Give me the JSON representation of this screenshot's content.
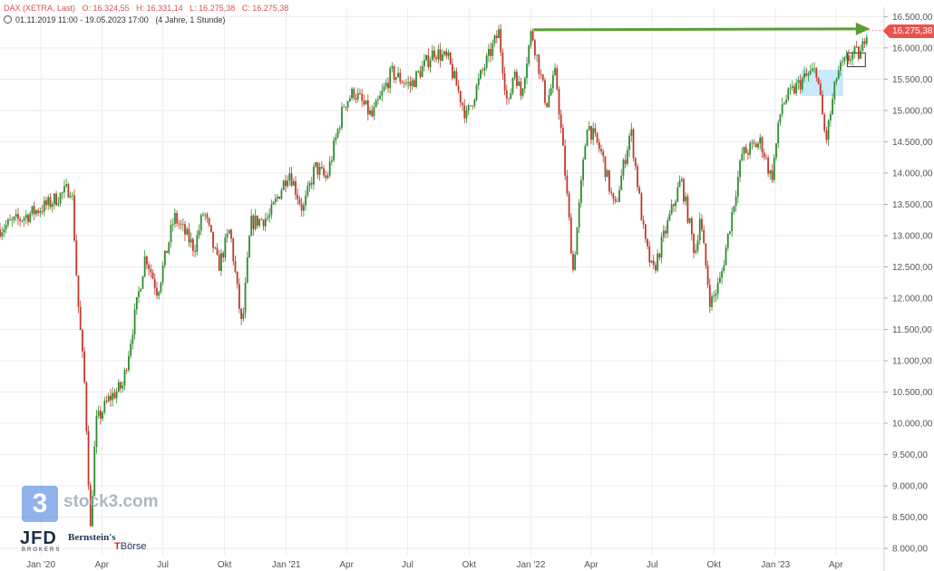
{
  "header": {
    "instrument": "DAX (XETRA, Last)",
    "open": "O: 16.324,55",
    "high": "H: 16.331,14",
    "low": "L: 16.275,38",
    "close": "C: 16.275,38",
    "range": "01.11.2019 11:00 - 19.05.2023 17:00",
    "period": "(4 Jahre, 1 Stunde)"
  },
  "last_price_label": "16.275,38",
  "watermark": {
    "icon": "3",
    "text": "stock3.com"
  },
  "logos": {
    "jfd": "JFD",
    "jfd_sub": "BROKERS",
    "bernstein": "Bernstein's",
    "boerse_mark": "T",
    "boerse": "Börse"
  },
  "colors": {
    "up": "#2e8b2e",
    "down": "#c0392b",
    "arrow": "#5a9e32",
    "zone": "#bfe6fa",
    "grid": "#ececec"
  },
  "chart_data": {
    "type": "candlestick",
    "title": "DAX (XETRA, Last)",
    "ylim": [
      7900,
      16650
    ],
    "y_ticks": [
      8000,
      8500,
      9000,
      9500,
      10000,
      10500,
      11000,
      11500,
      12000,
      12500,
      13000,
      13500,
      14000,
      14500,
      15000,
      15500,
      16000,
      16500
    ],
    "y_tick_labels": [
      "8.000,00",
      "8.500,00",
      "9.000,00",
      "9.500,00",
      "10.000,00",
      "10.500,00",
      "11.000,00",
      "11.500,00",
      "12.000,00",
      "12.500,00",
      "13.000,00",
      "13.500,00",
      "14.000,00",
      "14.500,00",
      "15.000,00",
      "15.500,00",
      "16.000,00",
      "16.500,00"
    ],
    "x_ticks": [
      "2020-01",
      "2020-04",
      "2020-07",
      "2020-10",
      "2021-01",
      "2021-04",
      "2021-07",
      "2021-10",
      "2022-01",
      "2022-04",
      "2022-07",
      "2022-10",
      "2023-01",
      "2023-04"
    ],
    "x_tick_labels": [
      "Jan '20",
      "Apr",
      "Jul",
      "Okt",
      "Jan '21",
      "Apr",
      "Jul",
      "Okt",
      "Jan '22",
      "Apr",
      "Jul",
      "Okt",
      "Jan '23",
      "Apr"
    ],
    "xlim": [
      "2019-11-01",
      "2023-06-12"
    ],
    "grid": true,
    "path": [
      {
        "x": "2019-11-01",
        "y": 13100
      },
      {
        "x": "2019-12-01",
        "y": 13250
      },
      {
        "x": "2020-01-15",
        "y": 13500
      },
      {
        "x": "2020-02-19",
        "y": 13780
      },
      {
        "x": "2020-02-28",
        "y": 12000
      },
      {
        "x": "2020-03-10",
        "y": 10500
      },
      {
        "x": "2020-03-18",
        "y": 8300
      },
      {
        "x": "2020-03-26",
        "y": 10000
      },
      {
        "x": "2020-04-15",
        "y": 10400
      },
      {
        "x": "2020-05-05",
        "y": 10600
      },
      {
        "x": "2020-06-08",
        "y": 12700
      },
      {
        "x": "2020-06-26",
        "y": 12100
      },
      {
        "x": "2020-07-21",
        "y": 13300
      },
      {
        "x": "2020-08-20",
        "y": 12800
      },
      {
        "x": "2020-09-03",
        "y": 13400
      },
      {
        "x": "2020-09-25",
        "y": 12500
      },
      {
        "x": "2020-10-12",
        "y": 13100
      },
      {
        "x": "2020-10-30",
        "y": 11500
      },
      {
        "x": "2020-11-12",
        "y": 13200
      },
      {
        "x": "2020-12-10",
        "y": 13300
      },
      {
        "x": "2021-01-08",
        "y": 14050
      },
      {
        "x": "2021-01-29",
        "y": 13400
      },
      {
        "x": "2021-02-16",
        "y": 14100
      },
      {
        "x": "2021-03-05",
        "y": 13900
      },
      {
        "x": "2021-03-31",
        "y": 15100
      },
      {
        "x": "2021-04-15",
        "y": 15300
      },
      {
        "x": "2021-05-12",
        "y": 14900
      },
      {
        "x": "2021-06-10",
        "y": 15600
      },
      {
        "x": "2021-07-08",
        "y": 15400
      },
      {
        "x": "2021-08-13",
        "y": 15950
      },
      {
        "x": "2021-09-03",
        "y": 15800
      },
      {
        "x": "2021-09-30",
        "y": 14900
      },
      {
        "x": "2021-10-21",
        "y": 15550
      },
      {
        "x": "2021-11-17",
        "y": 16250
      },
      {
        "x": "2021-12-01",
        "y": 15000
      },
      {
        "x": "2021-12-10",
        "y": 15700
      },
      {
        "x": "2021-12-20",
        "y": 15250
      },
      {
        "x": "2022-01-05",
        "y": 16280
      },
      {
        "x": "2022-01-27",
        "y": 15100
      },
      {
        "x": "2022-02-10",
        "y": 15600
      },
      {
        "x": "2022-02-24",
        "y": 14000
      },
      {
        "x": "2022-03-08",
        "y": 12450
      },
      {
        "x": "2022-03-29",
        "y": 14800
      },
      {
        "x": "2022-04-20",
        "y": 14300
      },
      {
        "x": "2022-05-09",
        "y": 13400
      },
      {
        "x": "2022-06-02",
        "y": 14700
      },
      {
        "x": "2022-06-23",
        "y": 12900
      },
      {
        "x": "2022-07-05",
        "y": 12400
      },
      {
        "x": "2022-08-16",
        "y": 13900
      },
      {
        "x": "2022-09-06",
        "y": 12700
      },
      {
        "x": "2022-09-13",
        "y": 13300
      },
      {
        "x": "2022-09-29",
        "y": 11900
      },
      {
        "x": "2022-10-14",
        "y": 12300
      },
      {
        "x": "2022-11-15",
        "y": 14300
      },
      {
        "x": "2022-12-13",
        "y": 14500
      },
      {
        "x": "2022-12-29",
        "y": 13900
      },
      {
        "x": "2023-01-13",
        "y": 15100
      },
      {
        "x": "2023-02-14",
        "y": 15500
      },
      {
        "x": "2023-03-06",
        "y": 15650
      },
      {
        "x": "2023-03-20",
        "y": 14500
      },
      {
        "x": "2023-04-06",
        "y": 15600
      },
      {
        "x": "2023-04-28",
        "y": 15900
      },
      {
        "x": "2023-05-12",
        "y": 15900
      },
      {
        "x": "2023-05-19",
        "y": 16300
      }
    ],
    "last_value": 16275.38,
    "annotations": {
      "resistance_arrow": {
        "from": {
          "x": "2022-01-05",
          "y": 16290
        },
        "to": {
          "x": "2023-05-17",
          "y": 16290
        }
      },
      "support_zone": {
        "x0": "2023-02-08",
        "x1": "2023-04-12",
        "y0": 15230,
        "y1": 15650
      },
      "consolidation_box": {
        "x0": "2023-04-18",
        "x1": "2023-05-15",
        "y0": 15700,
        "y1": 15920
      }
    }
  }
}
